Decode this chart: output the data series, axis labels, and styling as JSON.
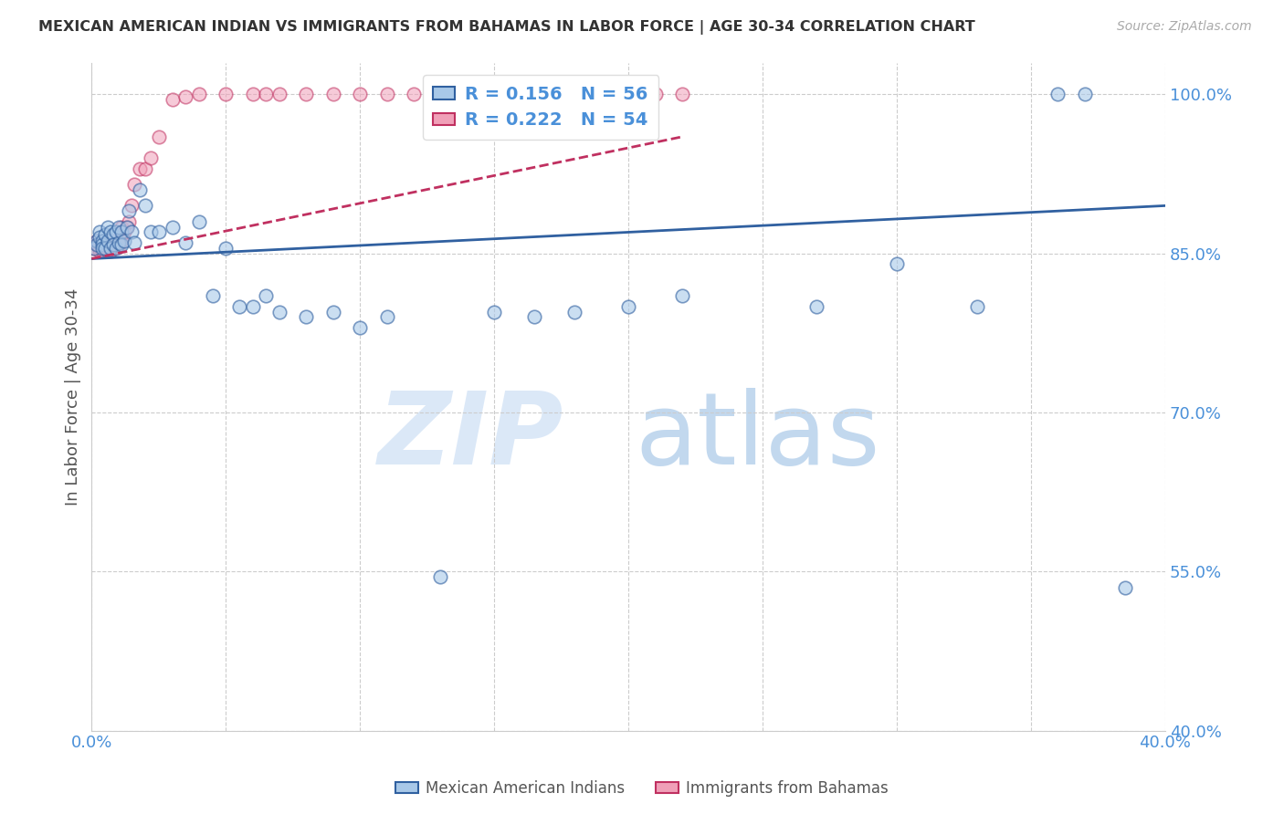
{
  "title": "MEXICAN AMERICAN INDIAN VS IMMIGRANTS FROM BAHAMAS IN LABOR FORCE | AGE 30-34 CORRELATION CHART",
  "source": "Source: ZipAtlas.com",
  "xlabel": "",
  "ylabel": "In Labor Force | Age 30-34",
  "xlim": [
    0.0,
    0.4
  ],
  "ylim": [
    0.4,
    1.03
  ],
  "yticks": [
    0.4,
    0.55,
    0.7,
    0.85,
    1.0
  ],
  "ytick_labels": [
    "40.0%",
    "55.0%",
    "70.0%",
    "85.0%",
    "100.0%"
  ],
  "xticks": [
    0.0,
    0.05,
    0.1,
    0.15,
    0.2,
    0.25,
    0.3,
    0.35,
    0.4
  ],
  "xtick_labels": [
    "0.0%",
    "",
    "",
    "",
    "",
    "",
    "",
    "",
    "40.0%"
  ],
  "blue_color": "#a8c8e8",
  "pink_color": "#f0a0b8",
  "blue_line_color": "#3060a0",
  "pink_line_color": "#c03060",
  "axis_color": "#4a90d9",
  "legend_blue_R": "0.156",
  "legend_blue_N": "56",
  "legend_pink_R": "0.222",
  "legend_pink_N": "54",
  "blue_trend_x": [
    0.0,
    0.4
  ],
  "blue_trend_y": [
    0.845,
    0.895
  ],
  "pink_trend_x": [
    0.0,
    0.22
  ],
  "pink_trend_y": [
    0.845,
    0.96
  ],
  "blue_x": [
    0.001,
    0.002,
    0.002,
    0.003,
    0.003,
    0.004,
    0.004,
    0.004,
    0.005,
    0.005,
    0.006,
    0.006,
    0.007,
    0.007,
    0.008,
    0.008,
    0.009,
    0.009,
    0.01,
    0.01,
    0.011,
    0.011,
    0.012,
    0.013,
    0.014,
    0.015,
    0.016,
    0.018,
    0.02,
    0.022,
    0.025,
    0.03,
    0.035,
    0.04,
    0.045,
    0.05,
    0.055,
    0.06,
    0.065,
    0.07,
    0.08,
    0.09,
    0.1,
    0.11,
    0.13,
    0.15,
    0.165,
    0.18,
    0.2,
    0.22,
    0.27,
    0.3,
    0.33,
    0.36,
    0.37,
    0.385
  ],
  "blue_y": [
    0.855,
    0.862,
    0.858,
    0.87,
    0.865,
    0.862,
    0.858,
    0.855,
    0.868,
    0.855,
    0.875,
    0.862,
    0.87,
    0.855,
    0.868,
    0.858,
    0.87,
    0.855,
    0.875,
    0.86,
    0.87,
    0.858,
    0.862,
    0.875,
    0.89,
    0.87,
    0.86,
    0.91,
    0.895,
    0.87,
    0.87,
    0.875,
    0.86,
    0.88,
    0.81,
    0.855,
    0.8,
    0.8,
    0.81,
    0.795,
    0.79,
    0.795,
    0.78,
    0.79,
    0.545,
    0.795,
    0.79,
    0.795,
    0.8,
    0.81,
    0.8,
    0.84,
    0.8,
    1.0,
    1.0,
    0.535
  ],
  "pink_x": [
    0.001,
    0.002,
    0.002,
    0.003,
    0.003,
    0.003,
    0.004,
    0.004,
    0.004,
    0.005,
    0.005,
    0.006,
    0.006,
    0.006,
    0.007,
    0.007,
    0.008,
    0.008,
    0.009,
    0.01,
    0.01,
    0.011,
    0.011,
    0.012,
    0.013,
    0.014,
    0.015,
    0.016,
    0.018,
    0.02,
    0.022,
    0.025,
    0.03,
    0.035,
    0.04,
    0.05,
    0.06,
    0.065,
    0.07,
    0.08,
    0.09,
    0.1,
    0.11,
    0.12,
    0.13,
    0.14,
    0.15,
    0.16,
    0.17,
    0.18,
    0.19,
    0.2,
    0.21,
    0.22
  ],
  "pink_y": [
    0.855,
    0.862,
    0.858,
    0.858,
    0.855,
    0.852,
    0.858,
    0.855,
    0.852,
    0.862,
    0.858,
    0.86,
    0.855,
    0.852,
    0.858,
    0.852,
    0.862,
    0.855,
    0.858,
    0.862,
    0.858,
    0.875,
    0.862,
    0.87,
    0.875,
    0.88,
    0.895,
    0.915,
    0.93,
    0.93,
    0.94,
    0.96,
    0.995,
    0.998,
    1.0,
    1.0,
    1.0,
    1.0,
    1.0,
    1.0,
    1.0,
    1.0,
    1.0,
    1.0,
    1.0,
    1.0,
    1.0,
    1.0,
    1.0,
    1.0,
    1.0,
    1.0,
    1.0,
    1.0
  ]
}
